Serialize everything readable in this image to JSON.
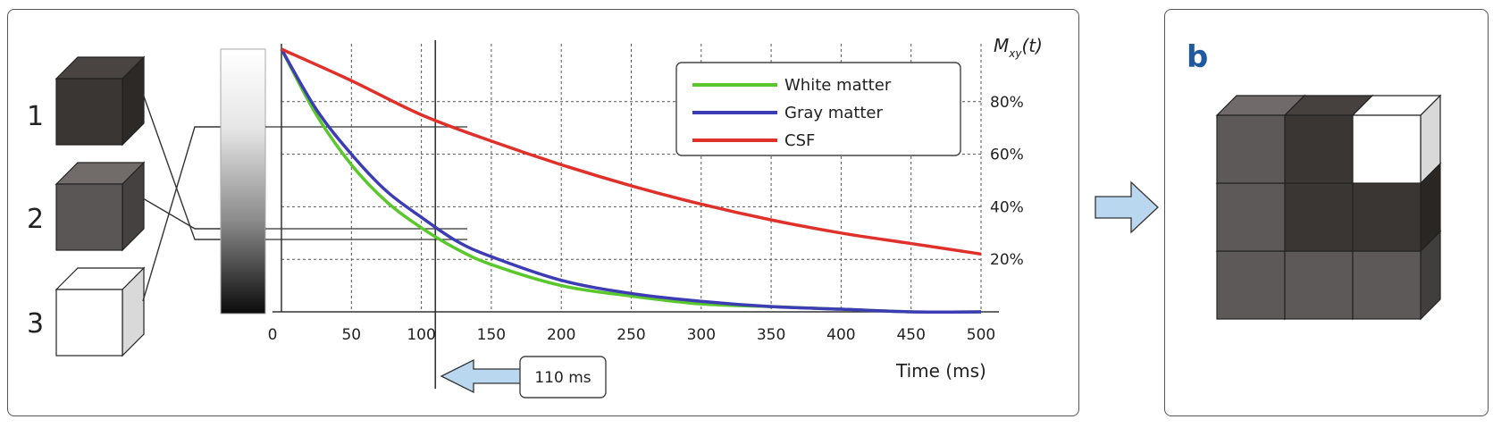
{
  "panel_a": {
    "cube_labels": [
      "1",
      "2",
      "3"
    ],
    "cube_colors": [
      "#3a3634",
      "#5a5655",
      "#ffffff"
    ]
  },
  "panel_b": {
    "letter": "b",
    "grid_colors": [
      [
        "#5d5958",
        "#3a3634",
        "#ffffff"
      ],
      [
        "#5d5958",
        "#3a3634",
        "#3a3634"
      ],
      [
        "#5d5958",
        "#5d5958",
        "#5d5958"
      ]
    ]
  },
  "annotation": {
    "time_marker_label": "110 ms",
    "time_marker_value": 110
  },
  "chart_data": {
    "type": "line",
    "y_title": "M",
    "y_title_sub": "xy",
    "y_title_arg": "(t)",
    "xlabel": "Time (ms)",
    "xlim": [
      0,
      500
    ],
    "ylim": [
      0,
      100
    ],
    "x_ticks": [
      0,
      50,
      100,
      150,
      200,
      250,
      300,
      350,
      400,
      450,
      500
    ],
    "y_tick_labels": [
      "80%",
      "60%",
      "40%",
      "20%"
    ],
    "y_tick_values": [
      80,
      60,
      40,
      20
    ],
    "grid": true,
    "legend_position": "top-right",
    "series": [
      {
        "name": "White matter",
        "color": "#5ac82d",
        "x": [
          0,
          25,
          50,
          75,
          100,
          125,
          150,
          200,
          250,
          300,
          350,
          400,
          450,
          500
        ],
        "y": [
          100,
          75,
          56,
          42,
          32,
          24,
          18,
          10,
          6,
          3,
          2,
          1,
          0,
          0
        ]
      },
      {
        "name": "Gray matter",
        "color": "#3c3cb4",
        "x": [
          0,
          25,
          50,
          75,
          100,
          125,
          150,
          200,
          250,
          300,
          350,
          400,
          450,
          500
        ],
        "y": [
          100,
          77,
          60,
          46,
          36,
          27,
          21,
          12,
          7,
          4,
          2,
          1,
          0,
          0
        ]
      },
      {
        "name": "CSF",
        "color": "#e0302a",
        "x": [
          0,
          50,
          100,
          150,
          200,
          250,
          300,
          350,
          400,
          450,
          500
        ],
        "y": [
          100,
          88,
          75,
          65,
          56,
          48,
          41,
          35,
          30,
          26,
          22
        ]
      }
    ]
  }
}
